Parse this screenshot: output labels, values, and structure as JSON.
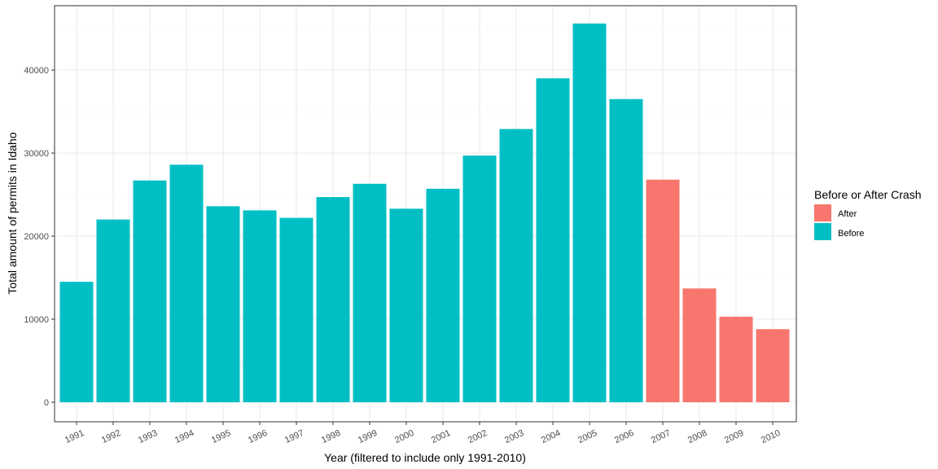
{
  "chart_data": {
    "type": "bar",
    "title": "",
    "xlabel": "Year (filtered to include only 1991-2010)",
    "ylabel": "Total amount of permits in Idaho",
    "ylim": [
      0,
      46000
    ],
    "yticks": [
      0,
      10000,
      20000,
      30000,
      40000
    ],
    "grid": true,
    "categories": [
      "1991",
      "1992",
      "1993",
      "1994",
      "1995",
      "1996",
      "1997",
      "1998",
      "1999",
      "2000",
      "2001",
      "2002",
      "2003",
      "2004",
      "2005",
      "2006",
      "2007",
      "2008",
      "2009",
      "2010"
    ],
    "values": [
      14500,
      22000,
      26700,
      28600,
      23600,
      23100,
      22200,
      24700,
      26300,
      23300,
      25700,
      29700,
      32900,
      39000,
      45600,
      36500,
      26800,
      13700,
      10300,
      8800
    ],
    "groups": [
      "Before",
      "Before",
      "Before",
      "Before",
      "Before",
      "Before",
      "Before",
      "Before",
      "Before",
      "Before",
      "Before",
      "Before",
      "Before",
      "Before",
      "Before",
      "Before",
      "After",
      "After",
      "After",
      "After"
    ],
    "legend": {
      "title": "Before or After Crash",
      "placement": "right",
      "entries": [
        {
          "label": "After",
          "color": "#F8766D"
        },
        {
          "label": "Before",
          "color": "#00BFC4"
        }
      ]
    }
  }
}
